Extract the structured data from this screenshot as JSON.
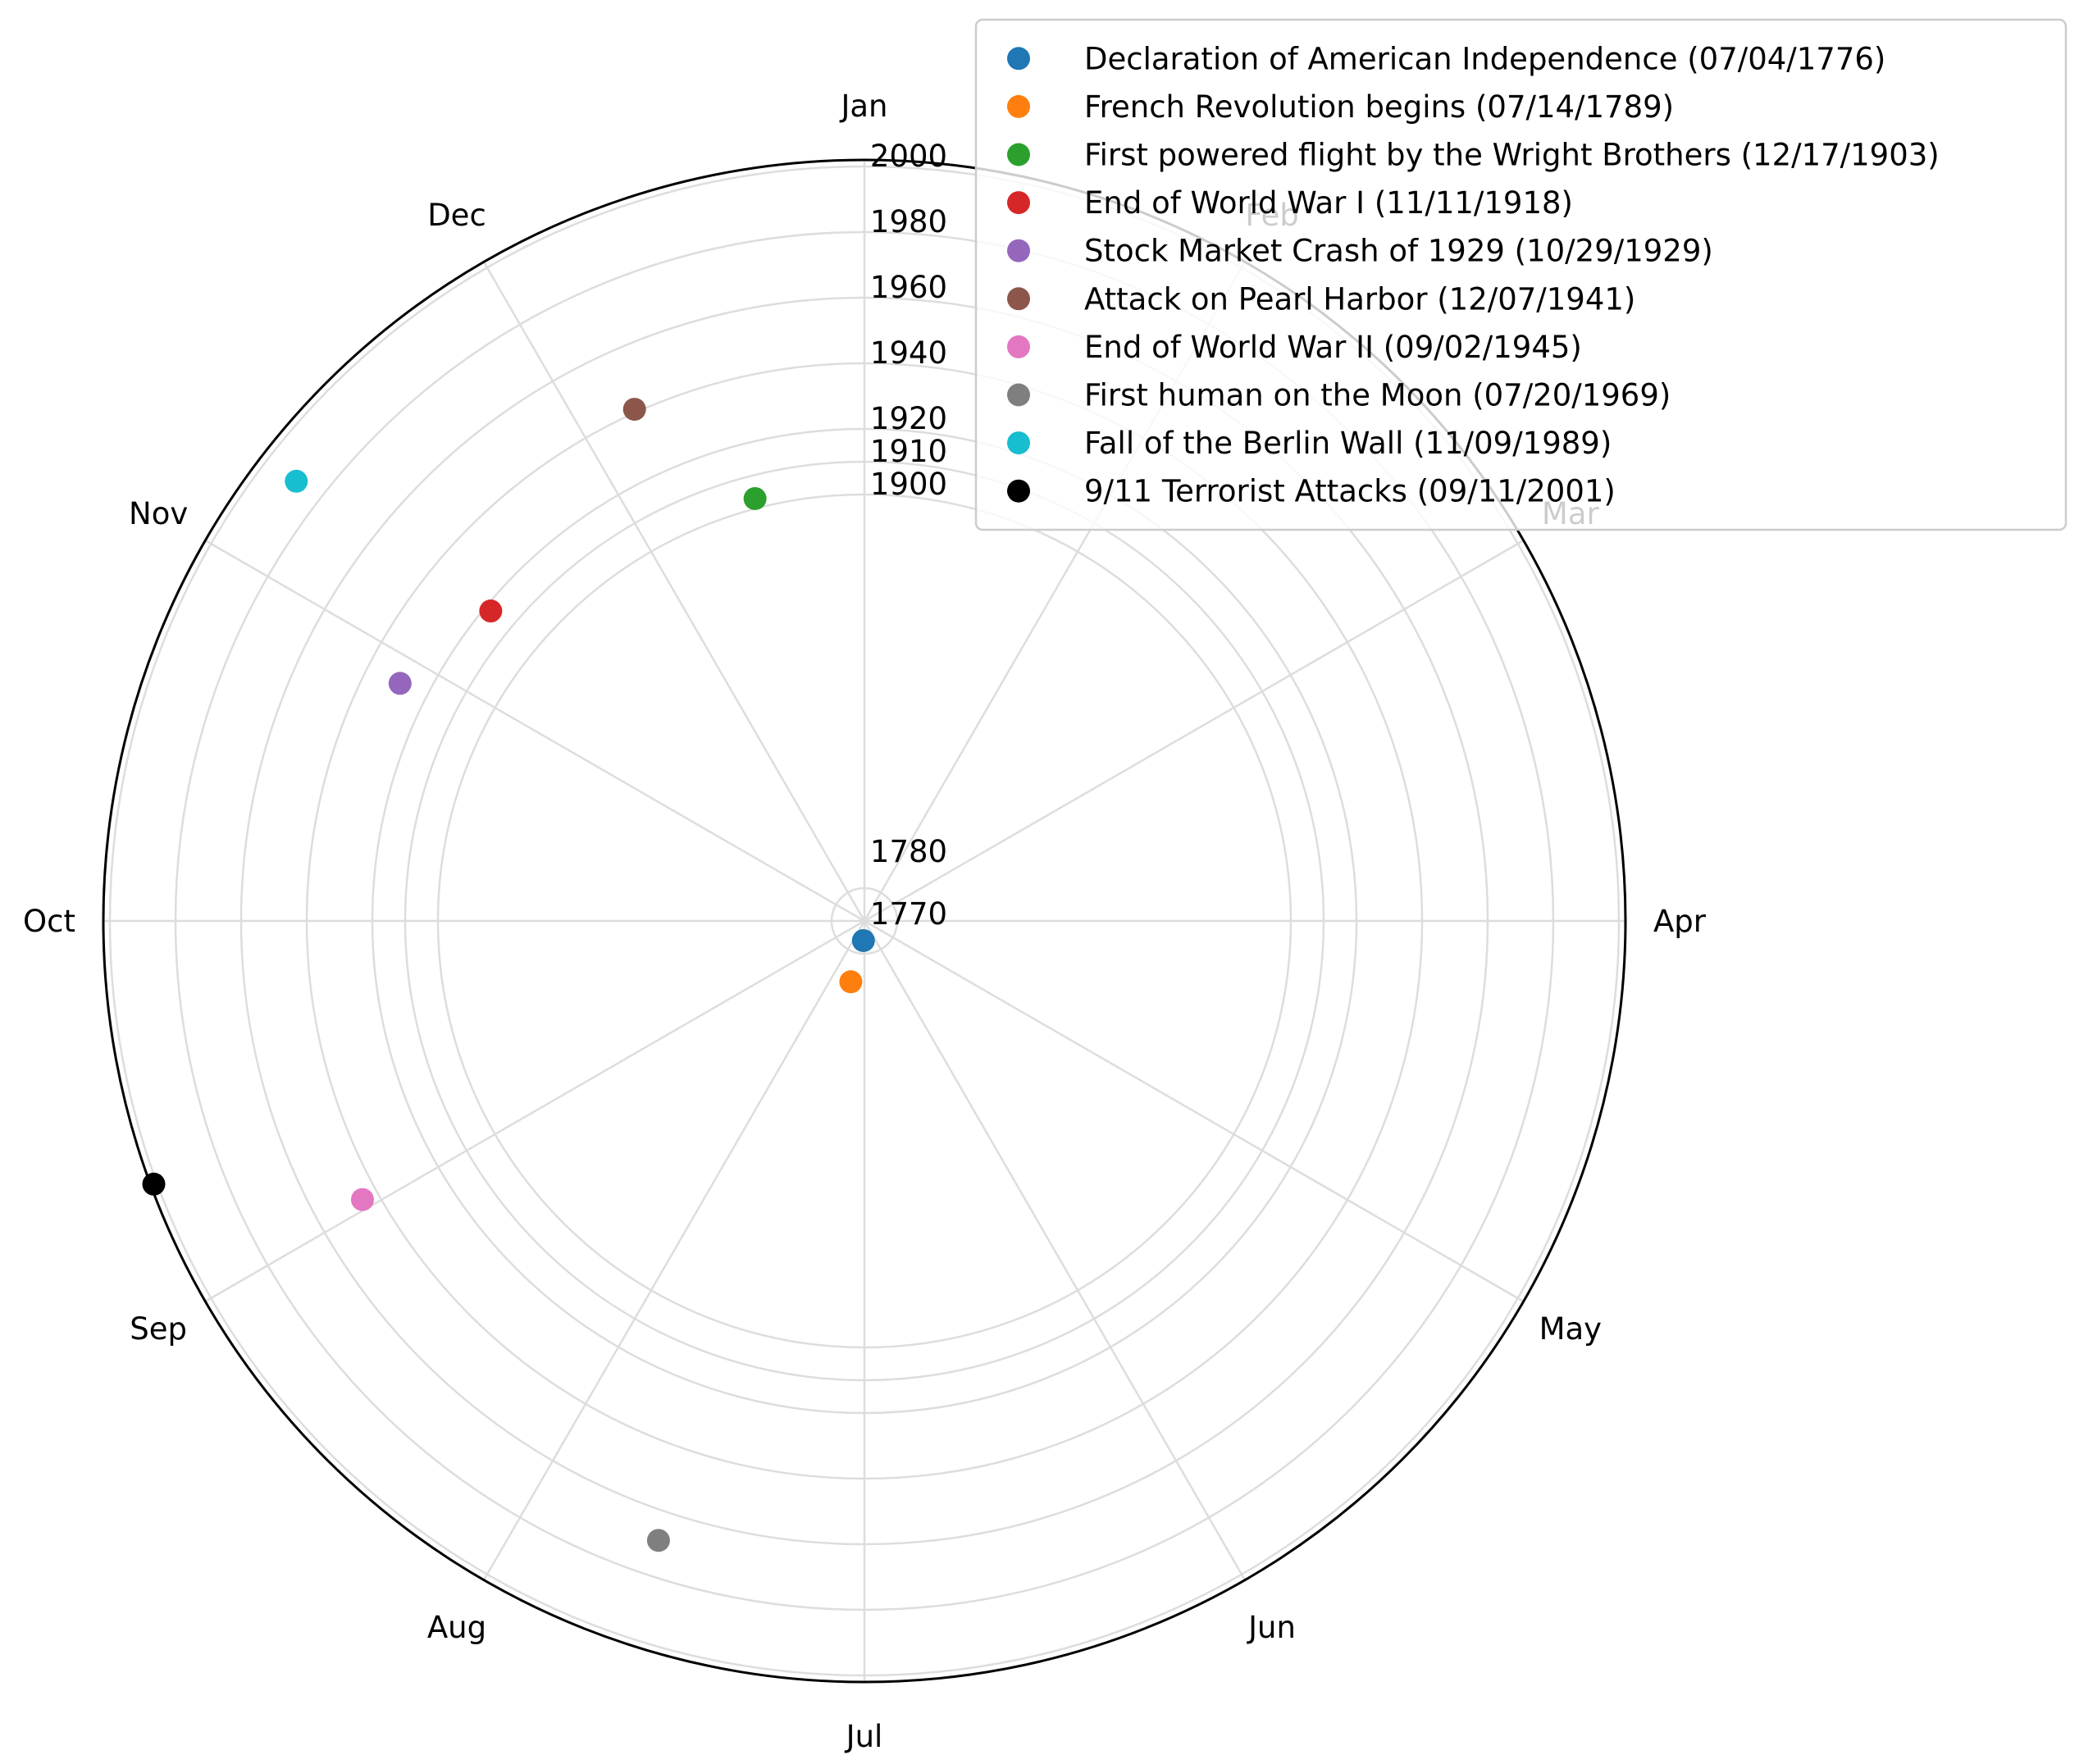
{
  "chart_data": {
    "type": "scatter",
    "projection": "polar",
    "title": "",
    "angular_axis": {
      "labels": [
        "Jan",
        "Feb",
        "Mar",
        "Apr",
        "May",
        "Jun",
        "Jul",
        "Aug",
        "Sep",
        "Oct",
        "Nov",
        "Dec"
      ],
      "direction": "clockwise",
      "zero_location": "top"
    },
    "radial_axis": {
      "tick_labels": [
        "1770",
        "1780",
        "1900",
        "1910",
        "1920",
        "1940",
        "1960",
        "1980",
        "2000"
      ],
      "range": [
        1770,
        2002
      ]
    },
    "grid": true,
    "legend_position": "top-right",
    "series": [
      {
        "name": "Declaration of American Independence (07/04/1776)",
        "month": 7,
        "day": 4,
        "year": 1776,
        "color": "#1f77b4"
      },
      {
        "name": "French Revolution begins (07/14/1789)",
        "month": 7,
        "day": 14,
        "year": 1789,
        "color": "#ff7f0e"
      },
      {
        "name": "First powered flight by the Wright Brothers (12/17/1903)",
        "month": 12,
        "day": 17,
        "year": 1903,
        "color": "#2ca02c"
      },
      {
        "name": "End of World War I (11/11/1918)",
        "month": 11,
        "day": 11,
        "year": 1918,
        "color": "#d62728"
      },
      {
        "name": "Stock Market Crash of 1929 (10/29/1929)",
        "month": 10,
        "day": 29,
        "year": 1929,
        "color": "#9467bd"
      },
      {
        "name": "Attack on Pearl Harbor (12/07/1941)",
        "month": 12,
        "day": 7,
        "year": 1941,
        "color": "#8c564b"
      },
      {
        "name": "End of World War II (09/02/1945)",
        "month": 9,
        "day": 2,
        "year": 1945,
        "color": "#e377c2"
      },
      {
        "name": "First human on the Moon (07/20/1969)",
        "month": 7,
        "day": 20,
        "year": 1969,
        "color": "#7f7f7f"
      },
      {
        "name": "Fall of the Berlin Wall (11/09/1989)",
        "month": 11,
        "day": 9,
        "year": 1989,
        "color": "#17becf"
      },
      {
        "name": "9/11 Terrorist Attacks (09/11/2001)",
        "month": 9,
        "day": 11,
        "year": 2001,
        "color": "#000000"
      }
    ]
  }
}
